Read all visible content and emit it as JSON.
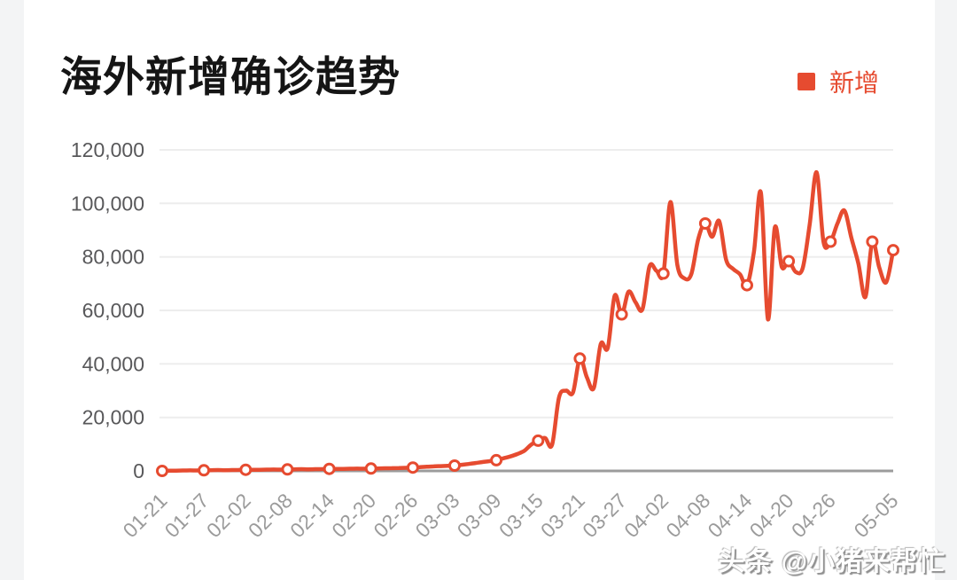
{
  "page": {
    "background": "#f3f4f5",
    "card_background": "#ffffff"
  },
  "header": {
    "title": "海外新增确诊趋势",
    "legend": {
      "label": "新增",
      "color": "#e64b30"
    }
  },
  "watermark": {
    "text": "头条 @小猪来帮忙"
  },
  "chart_data": {
    "type": "line",
    "title": "海外新增确诊趋势",
    "series_name": "新增",
    "line_color": "#e64b30",
    "marker_style": "white-filled circle with red ring",
    "smooth": true,
    "grid": "horizontal light gray gridlines",
    "legend_position": "top-right",
    "ylim": [
      0,
      120000
    ],
    "y_tick_values": [
      0,
      20000,
      40000,
      60000,
      80000,
      100000,
      120000
    ],
    "y_tick_labels": [
      "0",
      "20,000",
      "40,000",
      "60,000",
      "80,000",
      "100,000",
      "120,000"
    ],
    "x_tick_labels": [
      "01-21",
      "01-27",
      "02-02",
      "02-08",
      "02-14",
      "02-20",
      "02-26",
      "03-03",
      "03-09",
      "03-15",
      "03-21",
      "03-27",
      "04-02",
      "04-08",
      "04-14",
      "04-20",
      "04-26",
      "05-05"
    ],
    "x_tick_indices": [
      0,
      6,
      12,
      18,
      24,
      30,
      36,
      42,
      48,
      54,
      60,
      66,
      72,
      78,
      84,
      90,
      96,
      105
    ],
    "marker_indices": [
      0,
      6,
      12,
      18,
      24,
      30,
      36,
      42,
      48,
      54,
      60,
      66,
      72,
      78,
      84,
      90,
      96,
      102,
      105
    ],
    "dates": [
      "01-21",
      "01-22",
      "01-23",
      "01-24",
      "01-25",
      "01-26",
      "01-27",
      "01-28",
      "01-29",
      "01-30",
      "01-31",
      "02-01",
      "02-02",
      "02-03",
      "02-04",
      "02-05",
      "02-06",
      "02-07",
      "02-08",
      "02-09",
      "02-10",
      "02-11",
      "02-12",
      "02-13",
      "02-14",
      "02-15",
      "02-16",
      "02-17",
      "02-18",
      "02-19",
      "02-20",
      "02-21",
      "02-22",
      "02-23",
      "02-24",
      "02-25",
      "02-26",
      "02-27",
      "02-28",
      "02-29",
      "03-01",
      "03-02",
      "03-03",
      "03-04",
      "03-05",
      "03-06",
      "03-07",
      "03-08",
      "03-09",
      "03-10",
      "03-11",
      "03-12",
      "03-13",
      "03-14",
      "03-15",
      "03-16",
      "03-17",
      "03-18",
      "03-19",
      "03-20",
      "03-21",
      "03-22",
      "03-23",
      "03-24",
      "03-25",
      "03-26",
      "03-27",
      "03-28",
      "03-29",
      "03-30",
      "03-31",
      "04-01",
      "04-02",
      "04-03",
      "04-04",
      "04-05",
      "04-06",
      "04-07",
      "04-08",
      "04-09",
      "04-10",
      "04-11",
      "04-12",
      "04-13",
      "04-14",
      "04-15",
      "04-16",
      "04-17",
      "04-18",
      "04-19",
      "04-20",
      "04-21",
      "04-22",
      "04-23",
      "04-24",
      "04-25",
      "04-26",
      "04-27",
      "04-28",
      "04-29",
      "04-30",
      "05-01",
      "05-02",
      "05-03",
      "05-04",
      "05-05"
    ],
    "values": [
      0,
      60,
      110,
      160,
      210,
      170,
      220,
      270,
      320,
      280,
      330,
      380,
      430,
      390,
      440,
      490,
      540,
      500,
      550,
      600,
      650,
      610,
      660,
      710,
      760,
      720,
      770,
      820,
      870,
      830,
      880,
      930,
      980,
      1040,
      1100,
      1160,
      1250,
      1400,
      1550,
      1700,
      1800,
      1900,
      2000,
      2300,
      2600,
      2950,
      3300,
      3650,
      4000,
      4700,
      5400,
      6300,
      7500,
      9800,
      11300,
      12300,
      9700,
      27500,
      30000,
      29300,
      42000,
      35000,
      31000,
      47500,
      46000,
      65500,
      58500,
      67000,
      63000,
      60500,
      76500,
      74800,
      73800,
      100500,
      77000,
      72000,
      73500,
      86700,
      92500,
      87500,
      93400,
      79000,
      75500,
      73500,
      69400,
      82000,
      104000,
      56700,
      91000,
      76200,
      78400,
      74400,
      75800,
      92000,
      111600,
      85500,
      85700,
      92500,
      97300,
      87000,
      77500,
      65000,
      85700,
      76000,
      70500,
      82500
    ]
  },
  "style": {
    "gridline_color": "#ededed",
    "axis_line_color": "#9c9c9c",
    "y_label_color": "#58585a",
    "x_label_color": "#9b9b9b",
    "title_color": "#151515"
  }
}
